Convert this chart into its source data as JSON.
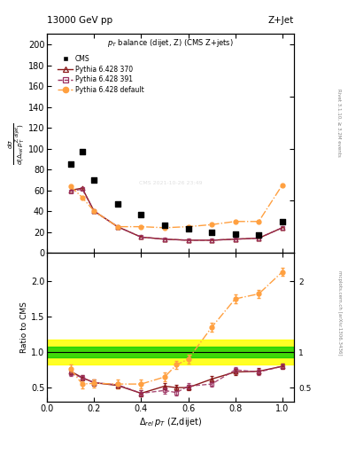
{
  "title_left": "13000 GeV pp",
  "title_right": "Z+Jet",
  "plot_title": "p_{T} balance (dijet, Z) (CMS Z+jets)",
  "ylabel_main": "d#sigma/d(#Delta_{rel} p_{T}^{Z,dijet})",
  "ylabel_ratio": "Ratio to CMS",
  "xlabel": "#Delta_{rel} p_{T} (Z,dijet)",
  "right_label_main": "Rivet 3.1.10, #geq 3.2M events",
  "right_label_bot": "mcplots.cern.ch [arXiv:1306.3436]",
  "cms_x": [
    0.1,
    0.15,
    0.2,
    0.3,
    0.4,
    0.5,
    0.6,
    0.7,
    0.8,
    0.9,
    1.0
  ],
  "cms_y": [
    85,
    97,
    70,
    47,
    37,
    26,
    23,
    20,
    18,
    17,
    30
  ],
  "py370_x": [
    0.1,
    0.15,
    0.2,
    0.3,
    0.4,
    0.5,
    0.6,
    0.7,
    0.8,
    0.9,
    1.0
  ],
  "py370_y": [
    60,
    62,
    40,
    25,
    15,
    13,
    12,
    12,
    13,
    14,
    24
  ],
  "py391_x": [
    0.1,
    0.15,
    0.2,
    0.3,
    0.4,
    0.5,
    0.6,
    0.7,
    0.8,
    0.9,
    1.0
  ],
  "py391_y": [
    59,
    61,
    40,
    25,
    15,
    13,
    12,
    12,
    13,
    14,
    24
  ],
  "pydef_x": [
    0.1,
    0.15,
    0.2,
    0.3,
    0.4,
    0.5,
    0.6,
    0.7,
    0.8,
    0.9,
    1.0
  ],
  "pydef_y": [
    64,
    53,
    40,
    25,
    25,
    24,
    25,
    27,
    30,
    30,
    65
  ],
  "ratio370_x": [
    0.1,
    0.15,
    0.2,
    0.3,
    0.4,
    0.5,
    0.55,
    0.6,
    0.7,
    0.8,
    0.9,
    1.0
  ],
  "ratio370_y": [
    0.73,
    0.64,
    0.57,
    0.53,
    0.42,
    0.52,
    0.5,
    0.5,
    0.62,
    0.72,
    0.73,
    0.8
  ],
  "ratio391_x": [
    0.1,
    0.15,
    0.2,
    0.3,
    0.4,
    0.5,
    0.55,
    0.6,
    0.7,
    0.8,
    0.9,
    1.0
  ],
  "ratio391_y": [
    0.7,
    0.64,
    0.57,
    0.54,
    0.42,
    0.46,
    0.43,
    0.52,
    0.55,
    0.75,
    0.72,
    0.8
  ],
  "ratiodef_x": [
    0.1,
    0.15,
    0.2,
    0.3,
    0.4,
    0.5,
    0.55,
    0.6,
    0.7,
    0.8,
    0.9,
    1.0
  ],
  "ratiodef_y": [
    0.76,
    0.55,
    0.56,
    0.55,
    0.55,
    0.65,
    0.82,
    0.9,
    1.35,
    1.75,
    1.82,
    2.13
  ],
  "color_370": "#8B1A1A",
  "color_391": "#9B3060",
  "color_def": "#FFA040",
  "color_cms": "black",
  "ylim_main": [
    0,
    210
  ],
  "ylim_ratio": [
    0.3,
    2.4
  ],
  "xlim": [
    0.0,
    1.05
  ],
  "green_band_ylo": 0.92,
  "green_band_yhi": 1.08,
  "yellow_band_ylo": 0.82,
  "yellow_band_yhi": 1.18,
  "watermark": "CMS 2021-10-26 23:49"
}
